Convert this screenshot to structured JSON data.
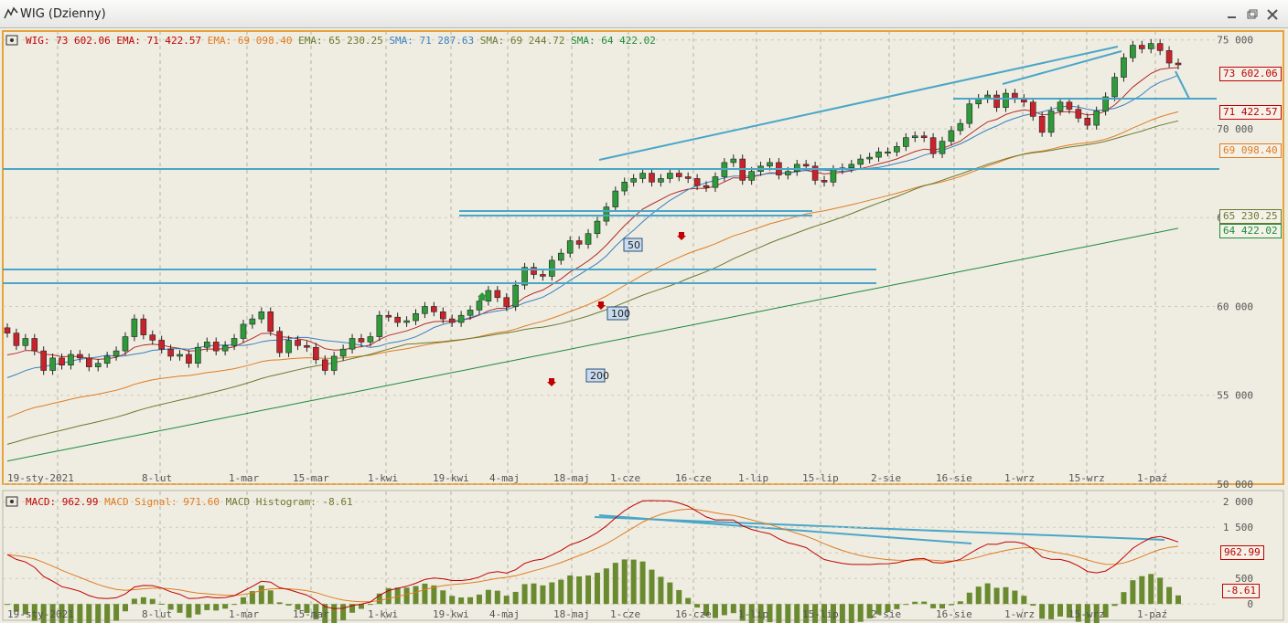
{
  "window": {
    "title": "WIG (Dzienny)"
  },
  "legend_top": [
    {
      "label": "WIG:",
      "value": "73 602.06",
      "color": "#c00000"
    },
    {
      "label": "EMA:",
      "value": "71 422.57",
      "color": "#c00000"
    },
    {
      "label": "EMA:",
      "value": "69 098.40",
      "color": "#e07b20"
    },
    {
      "label": "EMA:",
      "value": "65 230.25",
      "color": "#6a7a30"
    },
    {
      "label": "SMA:",
      "value": "71 287.63",
      "color": "#3a7fc2"
    },
    {
      "label": "SMA:",
      "value": "69 244.72",
      "color": "#6a7a30"
    },
    {
      "label": "SMA:",
      "value": "64 422.02",
      "color": "#1e8c3a"
    }
  ],
  "legend_bottom": [
    {
      "label": "MACD:",
      "value": "962.99",
      "color": "#c00000"
    },
    {
      "label": "MACD Signal:",
      "value": "971.60",
      "color": "#e07b20"
    },
    {
      "label": "MACD Histogram:",
      "value": "-8.61",
      "color": "#6a7a30"
    }
  ],
  "price_axis": [
    "75 000",
    "70 000",
    "65 000",
    "60 000",
    "55 000",
    "50 000"
  ],
  "macd_axis": [
    "2 000",
    "1 500",
    "1 000",
    "500",
    "0"
  ],
  "date_labels": [
    "19-sty-2021",
    "8-lut",
    "1-mar",
    "15-mar",
    "1-kwi",
    "19-kwi",
    "4-maj",
    "18-maj",
    "1-cze",
    "16-cze",
    "1-lip",
    "15-lip",
    "2-sie",
    "16-sie",
    "1-wrz",
    "15-wrz",
    "1-paź"
  ],
  "price_boxes": [
    {
      "value": "73 602.06",
      "color": "#c00000"
    },
    {
      "value": "71 422.57",
      "color": "#c00000"
    },
    {
      "value": "69 098.40",
      "color": "#e07b20"
    },
    {
      "value": "65 230.25",
      "color": "#6a7a30"
    },
    {
      "value": "64 422.02",
      "color": "#1e8c3a"
    }
  ],
  "macd_boxes": [
    {
      "value": "962.99",
      "color": "#c00000"
    },
    {
      "value": "-8.61",
      "color": "#c00000"
    }
  ],
  "ma_tags": [
    "50",
    "100",
    "200"
  ],
  "colors": {
    "up": "#2e9a3a",
    "down": "#c8232a",
    "trendline": "#4aa6c8",
    "background": "#eeece0"
  },
  "chart_data": {
    "type": "candlestick",
    "title": "WIG (Dzienny)",
    "ylim": [
      50000,
      75500
    ],
    "closes": [
      58500,
      57800,
      58200,
      57500,
      56400,
      57100,
      56700,
      57300,
      57100,
      56600,
      56800,
      57200,
      57500,
      58300,
      59300,
      58400,
      58100,
      57600,
      57200,
      57300,
      56800,
      57700,
      58000,
      57500,
      57800,
      58200,
      59000,
      59300,
      59700,
      58600,
      57400,
      58100,
      57800,
      57700,
      57000,
      56400,
      57200,
      57600,
      58200,
      58000,
      58300,
      59500,
      59400,
      59100,
      59200,
      59600,
      60000,
      59700,
      59300,
      59100,
      59500,
      59800,
      60300,
      60900,
      60500,
      60000,
      61200,
      62200,
      61800,
      61700,
      62600,
      63000,
      63700,
      63500,
      64100,
      64800,
      65600,
      66500,
      67000,
      67200,
      67500,
      67000,
      67200,
      67500,
      67300,
      67200,
      66800,
      66700,
      67300,
      68100,
      68300,
      67100,
      67600,
      67900,
      68100,
      67400,
      67600,
      68000,
      67900,
      67100,
      67000,
      67700,
      67800,
      68000,
      68300,
      68400,
      68700,
      68700,
      69000,
      69500,
      69600,
      69500,
      68600,
      69300,
      69900,
      70300,
      71400,
      71700,
      71900,
      71200,
      72000,
      71700,
      71500,
      70700,
      69800,
      71000,
      71500,
      71100,
      70600,
      70200,
      71000,
      71800,
      72900,
      74000,
      74700,
      74500,
      74800,
      74400,
      73700,
      73600
    ],
    "ema_fast": {
      "name": "EMA",
      "last": 71422.57
    },
    "macd": {
      "macd": 962.99,
      "signal": 971.6,
      "histogram": -8.61,
      "ylim": [
        -300,
        2200
      ]
    }
  }
}
